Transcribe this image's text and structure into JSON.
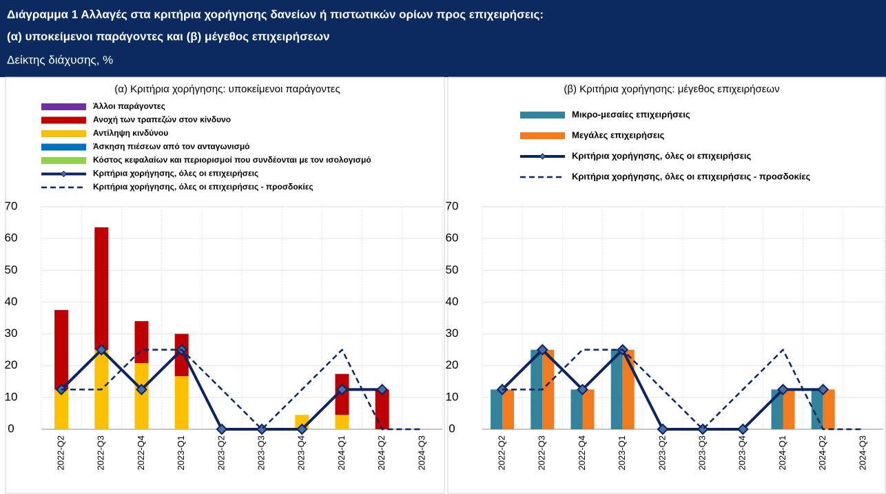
{
  "header": {
    "title_line1": "Διάγραμμα 1 Αλλαγές στα κριτήρια χορήγησης δανείων ή πιστωτικών ορίων προς επιχειρήσεις:",
    "title_line2": "(α) υποκείμενοι παράγοντες και (β) μέγεθος επιχειρήσεων",
    "subtitle": "Δείκτης διάχυσης, %"
  },
  "chart_data": [
    {
      "type": "bar",
      "stacked": true,
      "title": "(α) Κριτήρια χορήγησης: υποκείμενοι παράγοντες",
      "categories": [
        "2022-Q2",
        "2022-Q3",
        "2022-Q4",
        "2023-Q1",
        "2023-Q2",
        "2023-Q3",
        "2023-Q4",
        "2024-Q1",
        "2024-Q2",
        "2024-Q3"
      ],
      "series": [
        {
          "name": "Άλλοι παράγοντες",
          "type": "bar",
          "color": "#7030a0",
          "values": [
            0,
            0,
            0,
            0,
            0,
            0,
            0,
            0,
            0,
            0
          ]
        },
        {
          "name": "Ανοχή των τραπεζών στον κίνδυνο",
          "type": "bar",
          "color": "#c00000",
          "values": [
            25,
            38.5,
            13.2,
            13.3,
            0,
            0,
            0,
            12.9,
            12.5,
            0
          ]
        },
        {
          "name": "Αντίληψη κινδύνου",
          "type": "bar",
          "color": "#ffc000",
          "values": [
            12.5,
            25,
            20.8,
            16.7,
            0,
            0,
            4.5,
            4.5,
            0,
            0
          ]
        },
        {
          "name": "Άσκηση πιέσεων από τον ανταγωνισμό",
          "type": "bar",
          "color": "#0070c0",
          "values": [
            0,
            0,
            0,
            0,
            0,
            0,
            0,
            0,
            0,
            0
          ]
        },
        {
          "name": "Κόστος κεφαλαίων και περιορισμοί που συνδέονται με τον ισολογισμό",
          "type": "bar",
          "color": "#92d050",
          "values": [
            0,
            0,
            0,
            0,
            0,
            0,
            0,
            0,
            0,
            0
          ]
        },
        {
          "name": "Κριτήρια χορήγησης, όλες οι επιχειρήσεις",
          "type": "line",
          "color": "#0c2461",
          "marker": "diamond",
          "values": [
            12.5,
            25,
            12.5,
            25,
            0,
            0,
            0,
            12.5,
            12.5,
            null
          ]
        },
        {
          "name": "Κριτήρια χορήγησης, όλες οι επιχειρήσεις - προσδοκίες",
          "type": "line",
          "dashed": true,
          "color": "#0c2461",
          "values": [
            12.5,
            12.5,
            25,
            25,
            12.5,
            0,
            12.5,
            25,
            0,
            0
          ]
        }
      ],
      "ylim": [
        0,
        70
      ],
      "yticks": [
        0,
        10,
        20,
        30,
        40,
        50,
        60,
        70
      ],
      "grid": true
    },
    {
      "type": "bar",
      "stacked": false,
      "title": "(β) Κριτήρια χορήγησης: μέγεθος επιχειρήσεων",
      "categories": [
        "2022-Q2",
        "2022-Q3",
        "2022-Q4",
        "2023-Q1",
        "2023-Q2",
        "2023-Q3",
        "2023-Q4",
        "2024-Q1",
        "2024-Q2",
        "2024-Q3"
      ],
      "series": [
        {
          "name": "Μικρο-μεσαίες επιχειρήσεις",
          "type": "bar",
          "color": "#31849b",
          "values": [
            12.5,
            25,
            12.5,
            25,
            0,
            0,
            0,
            12.5,
            12.5,
            0
          ]
        },
        {
          "name": "Μεγάλες επιχειρήσεις",
          "type": "bar",
          "color": "#f47a20",
          "values": [
            12.5,
            25,
            12.5,
            25,
            0,
            0,
            0,
            12.5,
            12.5,
            0
          ]
        },
        {
          "name": "Κριτήρια χορήγησης, όλες οι επιχειρήσεις",
          "type": "line",
          "color": "#0c2461",
          "marker": "diamond",
          "values": [
            12.5,
            25,
            12.5,
            25,
            0,
            0,
            0,
            12.5,
            12.5,
            null
          ]
        },
        {
          "name": "Κριτήρια χορήγησης, όλες οι επιχειρήσεις - προσδοκίες",
          "type": "line",
          "dashed": true,
          "color": "#0c2461",
          "values": [
            12.5,
            12.5,
            25,
            25,
            12.5,
            0,
            12.5,
            25,
            0,
            0
          ]
        }
      ],
      "ylim": [
        0,
        70
      ],
      "yticks": [
        0,
        10,
        20,
        30,
        40,
        50,
        60,
        70
      ],
      "grid": true
    }
  ]
}
